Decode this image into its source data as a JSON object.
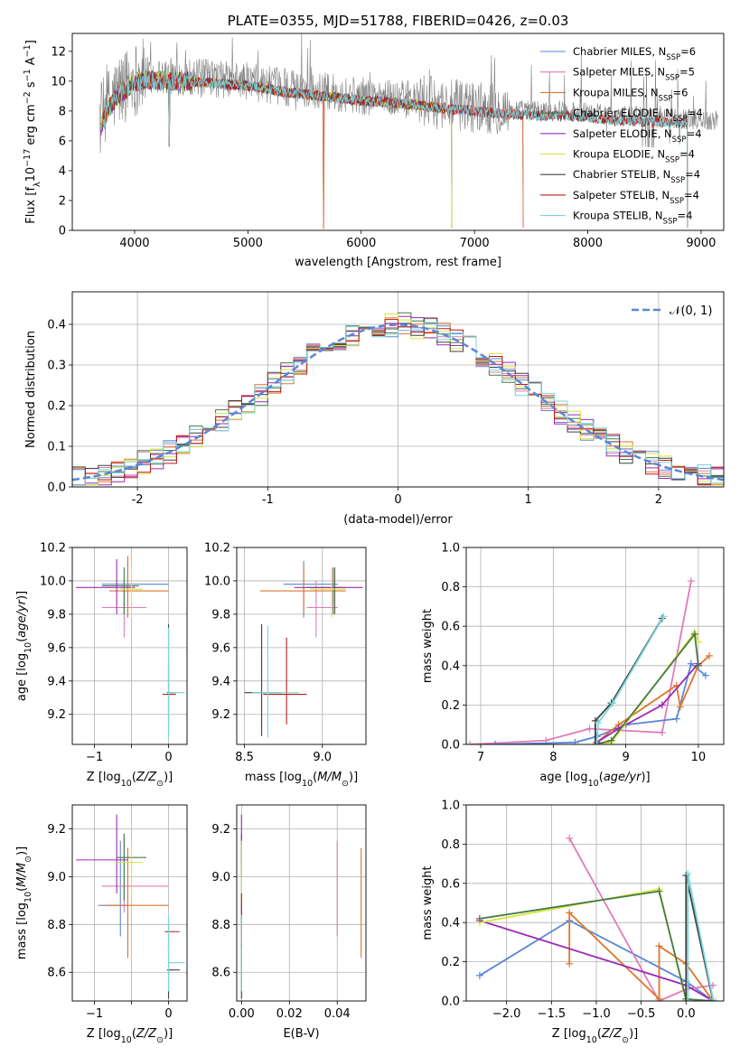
{
  "chart_data": [
    {
      "type": "line",
      "title": "PLATE=0355, MJD=51788, FIBERID=0426, z=0.03",
      "xlabel": "wavelength [Angstrom, rest frame]",
      "ylabel": "Flux [fλ10⁻¹⁷ erg cm⁻² s⁻¹ A⁻¹]",
      "xlim": [
        3450,
        9200
      ],
      "ylim": [
        0,
        13.2
      ],
      "xticks": [
        4000,
        5000,
        6000,
        7000,
        8000,
        9000
      ],
      "yticks": [
        0,
        2,
        4,
        6,
        8,
        10,
        12
      ],
      "grid": false,
      "legend_position": "top-right",
      "data_line": {
        "color": "#808080",
        "min_x": 3690,
        "max_x": 9150
      },
      "continuum": {
        "x": [
          3690,
          3750,
          3850,
          3950,
          4000,
          4100,
          4300,
          4500,
          4800,
          5000,
          5300,
          5500,
          5800,
          6000,
          6200,
          6500,
          6800,
          7000,
          7300,
          7500,
          7800,
          8000,
          8200,
          8500,
          8800,
          9150
        ],
        "y": [
          7.0,
          8.2,
          9.3,
          9.9,
          10.2,
          10.4,
          10.3,
          10.3,
          10.1,
          10.0,
          9.6,
          9.4,
          9.2,
          9.0,
          8.9,
          8.7,
          8.4,
          8.3,
          8.1,
          8.0,
          8.0,
          7.9,
          7.7,
          7.6,
          7.5,
          7.4
        ]
      },
      "series": [
        {
          "name": "Chabrier MILES, N",
          "sub": "SSP",
          "suffix": "=6",
          "color": "#5a87d6",
          "end": 7430
        },
        {
          "name": "Salpeter MILES, N",
          "sub": "SSP",
          "suffix": "=5",
          "color": "#e07bb8",
          "end": 7430
        },
        {
          "name": "Kroupa MILES, N",
          "sub": "SSP",
          "suffix": "=6",
          "color": "#e0742a",
          "end": 7430
        },
        {
          "name": "Chabrier ELODIE, N",
          "sub": "SSP",
          "suffix": "=4",
          "color": "#467b47",
          "end": 6800
        },
        {
          "name": "Salpeter ELODIE, N",
          "sub": "SSP",
          "suffix": "=4",
          "color": "#9a2ab6",
          "end": 6800
        },
        {
          "name": "Kroupa ELODIE, N",
          "sub": "SSP",
          "suffix": "=4",
          "color": "#d6e63a",
          "end": 6800
        },
        {
          "name": "Chabrier STELIB, N",
          "sub": "SSP",
          "suffix": "=4",
          "color": "#404040",
          "end": 8880
        },
        {
          "name": "Salpeter STELIB, N",
          "sub": "SSP",
          "suffix": "=4",
          "color": "#c01818",
          "end": 8880
        },
        {
          "name": "Kroupa STELIB, N",
          "sub": "SSP",
          "suffix": "=4",
          "color": "#78d6dc",
          "end": 8880
        }
      ]
    },
    {
      "type": "bar",
      "xlabel": "(data-model)/error",
      "ylabel": "Normed distribution",
      "xlim": [
        -2.5,
        2.5
      ],
      "ylim": [
        0,
        0.48
      ],
      "xticks": [
        -2,
        -1,
        0,
        1,
        2
      ],
      "yticks": [
        0.0,
        0.1,
        0.2,
        0.3,
        0.4
      ],
      "grid": true,
      "legend_position": "top-right",
      "legend": "𝒩(0, 1)",
      "gaussian": {
        "mean": 0,
        "sigma": 1,
        "color": "#5a87d6"
      },
      "bin_width": 0.1
    },
    {
      "type": "scatter",
      "xlabel": "Z [log10(Z/Z☉)]",
      "ylabel": "age  [log10(age/yr)]",
      "xlim": [
        -1.3,
        0.25
      ],
      "ylim": [
        9.02,
        10.2
      ],
      "xticks": [
        -1,
        -0.5,
        0
      ],
      "xticklabels": [
        "−1",
        "",
        "0"
      ],
      "yticks": [
        9.2,
        9.4,
        9.6,
        9.8,
        10.0,
        10.2
      ],
      "grid": true,
      "crosses": [
        {
          "x": -0.55,
          "y": 9.98,
          "xl": -0.9,
          "xh": 0,
          "yl": 9.78,
          "yh": 10.12,
          "c": "#5a87d6"
        },
        {
          "x": -0.6,
          "y": 9.84,
          "xl": -0.9,
          "xh": -0.3,
          "yl": 9.66,
          "yh": 10.0,
          "c": "#e07bb8"
        },
        {
          "x": -0.55,
          "y": 9.94,
          "xl": -0.8,
          "xh": 0.0,
          "yl": 9.78,
          "yh": 10.15,
          "c": "#e0742a"
        },
        {
          "x": -0.6,
          "y": 9.97,
          "xl": -0.9,
          "xh": -0.4,
          "yl": 9.8,
          "yh": 10.08,
          "c": "#467b47"
        },
        {
          "x": -0.7,
          "y": 9.96,
          "xl": -1.25,
          "xh": -0.45,
          "yl": 9.8,
          "yh": 10.13,
          "c": "#9a2ab6"
        },
        {
          "x": -0.5,
          "y": 9.95,
          "xl": -0.65,
          "xh": -0.35,
          "yl": 9.78,
          "yh": 10.08,
          "c": "#d6e63a"
        },
        {
          "x": 0.0,
          "y": 9.33,
          "xl": -0.02,
          "xh": 0.1,
          "yl": 9.1,
          "yh": 9.74,
          "c": "#404040"
        },
        {
          "x": 0.0,
          "y": 9.32,
          "xl": -0.08,
          "xh": 0.1,
          "yl": 9.18,
          "yh": 9.5,
          "c": "#c01818"
        },
        {
          "x": 0.0,
          "y": 9.33,
          "xl": 0.0,
          "xh": 0.22,
          "yl": 9.06,
          "yh": 9.72,
          "c": "#78d6dc"
        }
      ]
    },
    {
      "type": "scatter",
      "xlabel": "mass [log10(M/M☉)]",
      "ylabel": "",
      "xlim": [
        8.45,
        9.28
      ],
      "ylim": [
        9.02,
        10.2
      ],
      "xticks": [
        8.5,
        9.0
      ],
      "xticklabels": [
        "8.5",
        "9.0"
      ],
      "yticks": [
        9.2,
        9.4,
        9.6,
        9.8,
        10.0,
        10.2
      ],
      "grid": true,
      "crosses": [
        {
          "x": 8.88,
          "y": 9.98,
          "xl": 8.75,
          "xh": 9.1,
          "yl": 9.78,
          "yh": 10.12,
          "c": "#5a87d6"
        },
        {
          "x": 8.96,
          "y": 9.84,
          "xl": 8.9,
          "xh": 9.1,
          "yl": 9.66,
          "yh": 10.0,
          "c": "#e07bb8"
        },
        {
          "x": 8.88,
          "y": 9.94,
          "xl": 8.6,
          "xh": 9.15,
          "yl": 9.8,
          "yh": 10.1,
          "c": "#e0742a"
        },
        {
          "x": 9.08,
          "y": 9.96,
          "xl": 8.9,
          "xh": 9.15,
          "yl": 9.8,
          "yh": 10.08,
          "c": "#467b47"
        },
        {
          "x": 9.07,
          "y": 9.96,
          "xl": 8.82,
          "xh": 9.26,
          "yl": 9.8,
          "yh": 10.08,
          "c": "#9a2ab6"
        },
        {
          "x": 9.06,
          "y": 9.95,
          "xl": 8.92,
          "xh": 9.15,
          "yl": 9.78,
          "yh": 10.08,
          "c": "#d6e63a"
        },
        {
          "x": 8.61,
          "y": 9.33,
          "xl": 8.5,
          "xh": 8.74,
          "yl": 9.07,
          "yh": 9.74,
          "c": "#404040"
        },
        {
          "x": 8.77,
          "y": 9.32,
          "xl": 8.62,
          "xh": 8.9,
          "yl": 9.14,
          "yh": 9.66,
          "c": "#c01818"
        },
        {
          "x": 8.65,
          "y": 9.33,
          "xl": 8.55,
          "xh": 8.85,
          "yl": 9.06,
          "yh": 9.73,
          "c": "#78d6dc"
        }
      ]
    },
    {
      "type": "line",
      "xlabel": "age  [log10(age/yr)]",
      "ylabel": "mass weight",
      "xlim": [
        6.8,
        10.35
      ],
      "ylim": [
        0,
        1.0
      ],
      "xticks": [
        7,
        8,
        9,
        10
      ],
      "yticks": [
        0.0,
        0.2,
        0.4,
        0.6,
        0.8,
        1.0
      ],
      "grid": true,
      "lines": [
        {
          "c": "#e07bb8",
          "x": [
            6.85,
            7.9,
            8.5,
            9.5,
            9.9
          ],
          "y": [
            0.0,
            0.02,
            0.08,
            0.06,
            0.83
          ]
        },
        {
          "c": "#5a87d6",
          "x": [
            7.2,
            8.3,
            8.6,
            9.0,
            9.7,
            9.9,
            10.1
          ],
          "y": [
            0.0,
            0.01,
            0.04,
            0.1,
            0.13,
            0.41,
            0.35
          ]
        },
        {
          "c": "#e0742a",
          "x": [
            8.6,
            8.9,
            9.7,
            9.75,
            10.0,
            10.15
          ],
          "y": [
            0.01,
            0.1,
            0.3,
            0.19,
            0.4,
            0.45
          ]
        },
        {
          "c": "#9a2ab6",
          "x": [
            8.6,
            8.9,
            9.5,
            10.0
          ],
          "y": [
            0.01,
            0.08,
            0.2,
            0.41
          ]
        },
        {
          "c": "#d6e63a",
          "x": [
            8.58,
            8.8,
            9.95,
            10.0
          ],
          "y": [
            0.0,
            0.01,
            0.57,
            0.52
          ]
        },
        {
          "c": "#467b47",
          "x": [
            8.58,
            8.8,
            9.95,
            10.0
          ],
          "y": [
            0.0,
            0.02,
            0.56,
            0.4
          ]
        },
        {
          "c": "#404040",
          "x": [
            8.58,
            8.58,
            8.8,
            9.5
          ],
          "y": [
            0.0,
            0.12,
            0.21,
            0.64
          ]
        },
        {
          "c": "#78d6dc",
          "x": [
            8.6,
            8.62,
            8.82,
            9.52
          ],
          "y": [
            0.0,
            0.11,
            0.21,
            0.65
          ]
        }
      ]
    },
    {
      "type": "scatter",
      "xlabel": "Z [log10(Z/Z☉)]",
      "ylabel": "mass [log10(M/M☉)]",
      "xlim": [
        -1.3,
        0.25
      ],
      "ylim": [
        8.48,
        9.3
      ],
      "xticks": [
        -1,
        -0.5,
        0
      ],
      "xticklabels": [
        "−1",
        "",
        "0"
      ],
      "yticks": [
        8.6,
        8.8,
        9.0,
        9.2
      ],
      "grid": true,
      "crosses": [
        {
          "x": -0.65,
          "y": 8.88,
          "xl": -0.95,
          "xh": -0.55,
          "yl": 8.75,
          "yh": 9.15,
          "c": "#5a87d6"
        },
        {
          "x": -0.6,
          "y": 8.96,
          "xl": -0.9,
          "xh": 0.0,
          "yl": 8.85,
          "yh": 9.18,
          "c": "#e07bb8"
        },
        {
          "x": -0.55,
          "y": 8.88,
          "xl": -0.85,
          "xh": 0.0,
          "yl": 8.66,
          "yh": 9.12,
          "c": "#e0742a"
        },
        {
          "x": -0.6,
          "y": 9.08,
          "xl": -0.7,
          "xh": -0.3,
          "yl": 8.9,
          "yh": 9.18,
          "c": "#467b47"
        },
        {
          "x": -0.7,
          "y": 9.07,
          "xl": -1.25,
          "xh": -0.55,
          "yl": 8.93,
          "yh": 9.26,
          "c": "#9a2ab6"
        },
        {
          "x": -0.5,
          "y": 9.06,
          "xl": -0.7,
          "xh": -0.35,
          "yl": 8.9,
          "yh": 9.15,
          "c": "#d6e63a"
        },
        {
          "x": 0.0,
          "y": 8.61,
          "xl": -0.02,
          "xh": 0.15,
          "yl": 8.49,
          "yh": 8.72,
          "c": "#404040"
        },
        {
          "x": 0.0,
          "y": 8.77,
          "xl": -0.05,
          "xh": 0.15,
          "yl": 8.7,
          "yh": 8.83,
          "c": "#c01818"
        },
        {
          "x": 0.0,
          "y": 8.64,
          "xl": 0.0,
          "xh": 0.22,
          "yl": 8.52,
          "yh": 8.84,
          "c": "#78d6dc"
        }
      ]
    },
    {
      "type": "scatter",
      "xlabel": "E(B-V)",
      "ylabel": "",
      "xlim": [
        -0.002,
        0.052
      ],
      "ylim": [
        8.48,
        9.3
      ],
      "xticks": [
        0.0,
        0.02,
        0.04
      ],
      "xticklabels": [
        "0.00",
        "0.02",
        "0.04"
      ],
      "yticks": [
        8.6,
        8.8,
        9.0,
        9.2
      ],
      "grid": true,
      "vbars": [
        {
          "x": 0.0,
          "yl": 8.75,
          "yh": 9.15,
          "c": "#5a87d6"
        },
        {
          "x": 0.04,
          "yl": 8.75,
          "yh": 9.15,
          "c": "#e07bb8"
        },
        {
          "x": 0.05,
          "yl": 8.66,
          "yh": 9.12,
          "c": "#e0742a"
        },
        {
          "x": 0.0,
          "yl": 9.0,
          "yh": 9.18,
          "c": "#467b47"
        },
        {
          "x": 0.0,
          "yl": 9.05,
          "yh": 9.26,
          "c": "#9a2ab6"
        },
        {
          "x": 0.0,
          "yl": 8.9,
          "yh": 9.15,
          "c": "#d6e63a"
        },
        {
          "x": 0.0,
          "yl": 8.49,
          "yh": 8.72,
          "c": "#404040"
        },
        {
          "x": 0.0,
          "yl": 8.7,
          "yh": 8.93,
          "c": "#c01818"
        },
        {
          "x": 0.0,
          "yl": 8.52,
          "yh": 8.84,
          "c": "#78d6dc"
        }
      ]
    },
    {
      "type": "line",
      "xlabel": "Z [log10(Z/Z☉)]",
      "ylabel": "mass weight",
      "xlim": [
        -2.45,
        0.42
      ],
      "ylim": [
        0,
        1.0
      ],
      "xticks": [
        -2.0,
        -1.5,
        -1.0,
        -0.5,
        0.0
      ],
      "xticklabels": [
        "−2.0",
        "−1.5",
        "−1.0",
        "−0.5",
        "0.0"
      ],
      "yticks": [
        0.0,
        0.2,
        0.4,
        0.6,
        0.8,
        1.0
      ],
      "grid": true,
      "lines": [
        {
          "c": "#5a87d6",
          "x": [
            -2.3,
            -1.3,
            0.0,
            0.3
          ],
          "y": [
            0.13,
            0.41,
            0.1,
            0.0
          ]
        },
        {
          "c": "#e07bb8",
          "x": [
            -1.3,
            -0.3,
            0.0,
            0.3
          ],
          "y": [
            0.83,
            0.0,
            0.06,
            0.08
          ]
        },
        {
          "c": "#e0742a",
          "x": [
            -1.3,
            -1.3,
            -0.3,
            -0.3,
            0.0,
            0.3
          ],
          "y": [
            0.19,
            0.45,
            0.01,
            0.28,
            0.19,
            0.0
          ]
        },
        {
          "c": "#9a2ab6",
          "x": [
            -2.3,
            0.0,
            0.3
          ],
          "y": [
            0.41,
            0.08,
            0.0
          ]
        },
        {
          "c": "#d6e63a",
          "x": [
            -2.3,
            -0.3,
            0.0,
            0.3
          ],
          "y": [
            0.4,
            0.57,
            0.0,
            0.0
          ]
        },
        {
          "c": "#467b47",
          "x": [
            -2.3,
            -0.3,
            0.0,
            0.3
          ],
          "y": [
            0.42,
            0.56,
            0.01,
            0.0
          ]
        },
        {
          "c": "#404040",
          "x": [
            0.0,
            0.0,
            0.3
          ],
          "y": [
            0.0,
            0.64,
            0.0
          ]
        },
        {
          "c": "#78d6dc",
          "x": [
            0.02,
            0.02,
            0.3
          ],
          "y": [
            0.0,
            0.65,
            0.01
          ]
        }
      ]
    }
  ]
}
